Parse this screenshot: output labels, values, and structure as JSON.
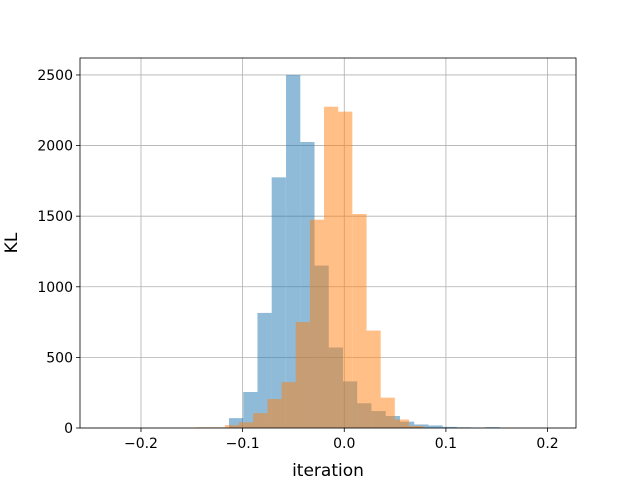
{
  "chart_data": {
    "type": "bar",
    "xlabel": "iteration",
    "ylabel": "KL",
    "xlim": [
      -0.26,
      0.228
    ],
    "ylim": [
      0,
      2620
    ],
    "grid": true,
    "xticks": [
      {
        "value": -0.2,
        "label": "−0.2"
      },
      {
        "value": -0.1,
        "label": "−0.1"
      },
      {
        "value": 0.0,
        "label": "0.0"
      },
      {
        "value": 0.1,
        "label": "0.1"
      },
      {
        "value": 0.2,
        "label": "0.2"
      }
    ],
    "yticks": [
      {
        "value": 0,
        "label": "0"
      },
      {
        "value": 500,
        "label": "500"
      },
      {
        "value": 1000,
        "label": "1000"
      },
      {
        "value": 1500,
        "label": "1500"
      },
      {
        "value": 2000,
        "label": "2000"
      },
      {
        "value": 2500,
        "label": "2500"
      }
    ],
    "series": [
      {
        "color": "#1f77b4",
        "opacity": 0.5,
        "bin_width": 0.01402,
        "bins": [
          {
            "x0": -0.1134,
            "value": 70
          },
          {
            "x0": -0.0994,
            "value": 255
          },
          {
            "x0": -0.0854,
            "value": 815
          },
          {
            "x0": -0.0714,
            "value": 1775
          },
          {
            "x0": -0.0573,
            "value": 2500
          },
          {
            "x0": -0.0433,
            "value": 2025
          },
          {
            "x0": -0.0293,
            "value": 1150
          },
          {
            "x0": -0.0153,
            "value": 570
          },
          {
            "x0": -0.0013,
            "value": 330
          },
          {
            "x0": 0.0127,
            "value": 175
          },
          {
            "x0": 0.0268,
            "value": 120
          },
          {
            "x0": 0.0408,
            "value": 85
          },
          {
            "x0": 0.0548,
            "value": 45
          },
          {
            "x0": 0.0688,
            "value": 25
          },
          {
            "x0": 0.0828,
            "value": 18
          },
          {
            "x0": 0.0968,
            "value": 8
          },
          {
            "x0": 0.1108,
            "value": 5
          },
          {
            "x0": 0.1248,
            "value": 2
          },
          {
            "x0": 0.1389,
            "value": 6
          }
        ]
      },
      {
        "color": "#ff7f0e",
        "opacity": 0.5,
        "bin_width": 0.01393,
        "bins": [
          {
            "x0": -0.1592,
            "value": 3
          },
          {
            "x0": -0.1453,
            "value": 5
          },
          {
            "x0": -0.1314,
            "value": 5
          },
          {
            "x0": -0.1174,
            "value": 20
          },
          {
            "x0": -0.1035,
            "value": 40
          },
          {
            "x0": -0.0896,
            "value": 105
          },
          {
            "x0": -0.0756,
            "value": 205
          },
          {
            "x0": -0.0617,
            "value": 325
          },
          {
            "x0": -0.0478,
            "value": 750
          },
          {
            "x0": -0.0338,
            "value": 1475
          },
          {
            "x0": -0.0199,
            "value": 2275
          },
          {
            "x0": -0.006,
            "value": 2240
          },
          {
            "x0": 0.008,
            "value": 1515
          },
          {
            "x0": 0.0219,
            "value": 690
          },
          {
            "x0": 0.0358,
            "value": 215
          },
          {
            "x0": 0.0498,
            "value": 60
          },
          {
            "x0": 0.0637,
            "value": 15
          }
        ]
      }
    ]
  }
}
